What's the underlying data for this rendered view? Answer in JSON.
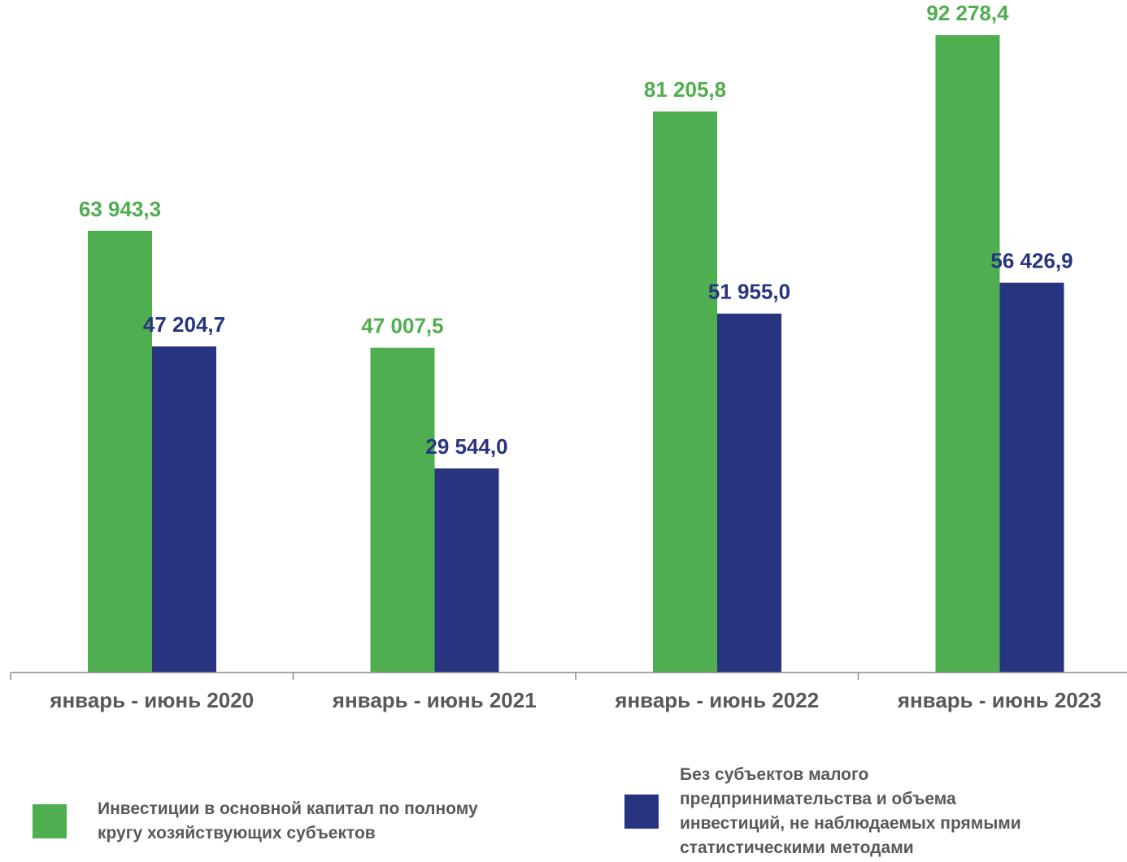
{
  "chart_data": {
    "type": "bar",
    "title": "",
    "xlabel": "",
    "ylabel": "",
    "ylim": [
      0,
      95000
    ],
    "grid": false,
    "legend_position": "bottom",
    "categories": [
      "январь - июнь 2020",
      "январь - июнь 2021",
      "январь - июнь 2022",
      "январь - июнь 2023"
    ],
    "series": [
      {
        "name": "Инвестиции в основной капитал по полному кругу хозяйствующих субъектов",
        "color": "#4FAE4F",
        "values": [
          63943.3,
          47007.5,
          81205.8,
          92278.4
        ],
        "labels": [
          "63 943,3",
          "47 007,5",
          "81 205,8",
          "92 278,4"
        ]
      },
      {
        "name": "Без субъектов малого предпринимательства и объема инвестиций, не наблюдаемых прямыми статистическими методами",
        "color": "#283480",
        "values": [
          47204.7,
          29544.0,
          51955.0,
          56426.9
        ],
        "labels": [
          "47 204,7",
          "29 544,0",
          "51 955,0",
          "56 426,9"
        ]
      }
    ]
  },
  "legend": {
    "items": [
      {
        "label": "Инвестиции в основной капитал по полному\nкругу хозяйствующих субъектов",
        "color": "#4FAE4F",
        "icon": "square-swatch"
      },
      {
        "label": "Без субъектов малого\nпредпринимательства и объема\nинвестиций, не наблюдаемых прямыми\nстатистическими методами",
        "color": "#283480",
        "icon": "square-swatch"
      }
    ]
  }
}
